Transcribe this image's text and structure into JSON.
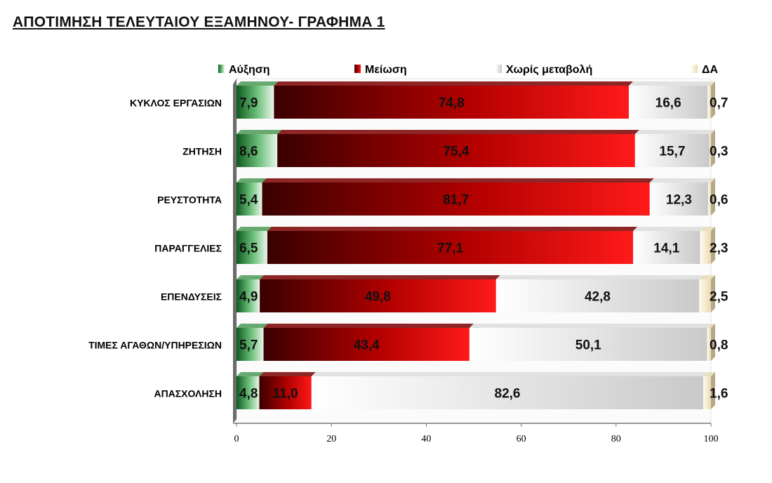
{
  "title": "ΑΠΟΤΙΜΗΣΗ ΤΕΛΕΥΤΑΙΟΥ ΕΞΑΜΗΝΟΥ- ΓΡΑΦΗΜΑ 1",
  "chart_data": {
    "type": "bar",
    "orientation": "horizontal",
    "stacked": true,
    "title": "ΑΠΟΤΙΜΗΣΗ ΤΕΛΕΥΤΑΙΟΥ ΕΞΑΜΗΝΟΥ- ΓΡΑΦΗΜΑ 1",
    "categories": [
      "ΚΥΚΛΟΣ ΕΡΓΑΣΙΩΝ",
      "ΖΗΤΗΣΗ",
      "ΡΕΥΣΤΟΤΗΤΑ",
      "ΠΑΡΑΓΓΕΛΙΕΣ",
      "ΕΠΕΝΔΥΣΕΙΣ",
      "ΤΙΜΕΣ ΑΓΑΘΩΝ/ΥΠΗΡΕΣΙΩΝ",
      "ΑΠΑΣΧΟΛΗΣΗ"
    ],
    "series": [
      {
        "name": "Αύξηση",
        "color": "#2e8b3e",
        "values": [
          7.9,
          8.6,
          5.4,
          6.5,
          4.9,
          5.7,
          4.8
        ],
        "labels": [
          "7,9",
          "8,6",
          "5,4",
          "6,5",
          "4,9",
          "5,7",
          "4,8"
        ]
      },
      {
        "name": "Μείωση",
        "color": "#d40000",
        "values": [
          74.8,
          75.4,
          81.7,
          77.1,
          49.8,
          43.4,
          11.0
        ],
        "labels": [
          "74,8",
          "75,4",
          "81,7",
          "77,1",
          "49,8",
          "43,4",
          "11,0"
        ]
      },
      {
        "name": "Χωρίς μεταβολή",
        "color": "#e6e6e6",
        "values": [
          16.6,
          15.7,
          12.3,
          14.1,
          42.8,
          50.1,
          82.6
        ],
        "labels": [
          "16,6",
          "15,7",
          "12,3",
          "14,1",
          "42,8",
          "50,1",
          "82,6"
        ]
      },
      {
        "name": "ΔΑ",
        "color": "#f3e8c8",
        "values": [
          0.7,
          0.3,
          0.6,
          2.3,
          2.5,
          0.8,
          1.6
        ],
        "labels": [
          "0,7",
          "0,3",
          "0,6",
          "2,3",
          "2,5",
          "0,8",
          "1,6"
        ]
      }
    ],
    "xlim": [
      0,
      100
    ],
    "xticks": [
      "0",
      "20",
      "40",
      "60",
      "80",
      "100"
    ],
    "legend": "top",
    "grid": false
  }
}
